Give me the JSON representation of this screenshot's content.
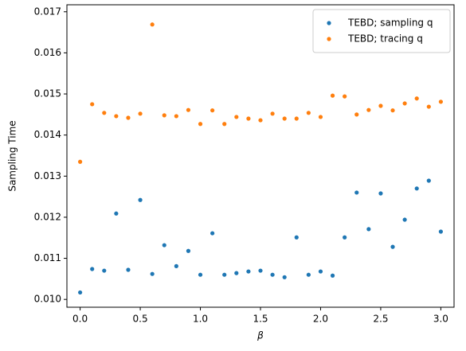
{
  "chart_data": {
    "type": "scatter",
    "x_label": "β",
    "y_label": "Sampling Time",
    "x": [
      0.0,
      0.1,
      0.2,
      0.3,
      0.4,
      0.5,
      0.6,
      0.7,
      0.8,
      0.9,
      1.0,
      1.1,
      1.2,
      1.3,
      1.4,
      1.5,
      1.6,
      1.7,
      1.8,
      1.9,
      2.0,
      2.1,
      2.2,
      2.3,
      2.4,
      2.5,
      2.6,
      2.7,
      2.8,
      2.9,
      3.0
    ],
    "series": [
      {
        "name": "TEBD; sampling q",
        "color": "#1f77b4",
        "values": [
          0.01017,
          0.01074,
          0.0107,
          0.01209,
          0.01072,
          0.01242,
          0.01062,
          0.01132,
          0.01081,
          0.01118,
          0.0106,
          0.01161,
          0.0106,
          0.01064,
          0.01068,
          0.0107,
          0.0106,
          0.01054,
          0.01151,
          0.0106,
          0.01068,
          0.01058,
          0.01151,
          0.0126,
          0.01171,
          0.01258,
          0.01128,
          0.01194,
          0.0127,
          0.01289,
          0.01165
        ]
      },
      {
        "name": "TEBD; tracing q",
        "color": "#ff7f0e",
        "values": [
          0.01335,
          0.01475,
          0.01454,
          0.01446,
          0.01442,
          0.01452,
          0.01669,
          0.01448,
          0.01446,
          0.01461,
          0.01427,
          0.0146,
          0.01427,
          0.01444,
          0.0144,
          0.01436,
          0.01452,
          0.0144,
          0.0144,
          0.01454,
          0.01444,
          0.01496,
          0.01494,
          0.0145,
          0.01461,
          0.01471,
          0.0146,
          0.01477,
          0.01489,
          0.01469,
          0.01481
        ]
      }
    ],
    "xlim": [
      -0.11,
      3.11
    ],
    "ylim": [
      0.00981,
      0.01717
    ],
    "xticks": [
      {
        "value": 0,
        "label": "0.0"
      },
      0.5,
      {
        "value": 1,
        "label": "1.0"
      },
      1.5,
      {
        "value": 2,
        "label": "2.0"
      },
      2.5,
      {
        "value": 3,
        "label": "3.0"
      }
    ],
    "yticks": [
      {
        "value": 0.01,
        "label": "0.010"
      },
      0.011,
      0.012,
      0.013,
      0.014,
      0.015,
      0.016,
      0.017
    ],
    "legend": "upper right"
  }
}
